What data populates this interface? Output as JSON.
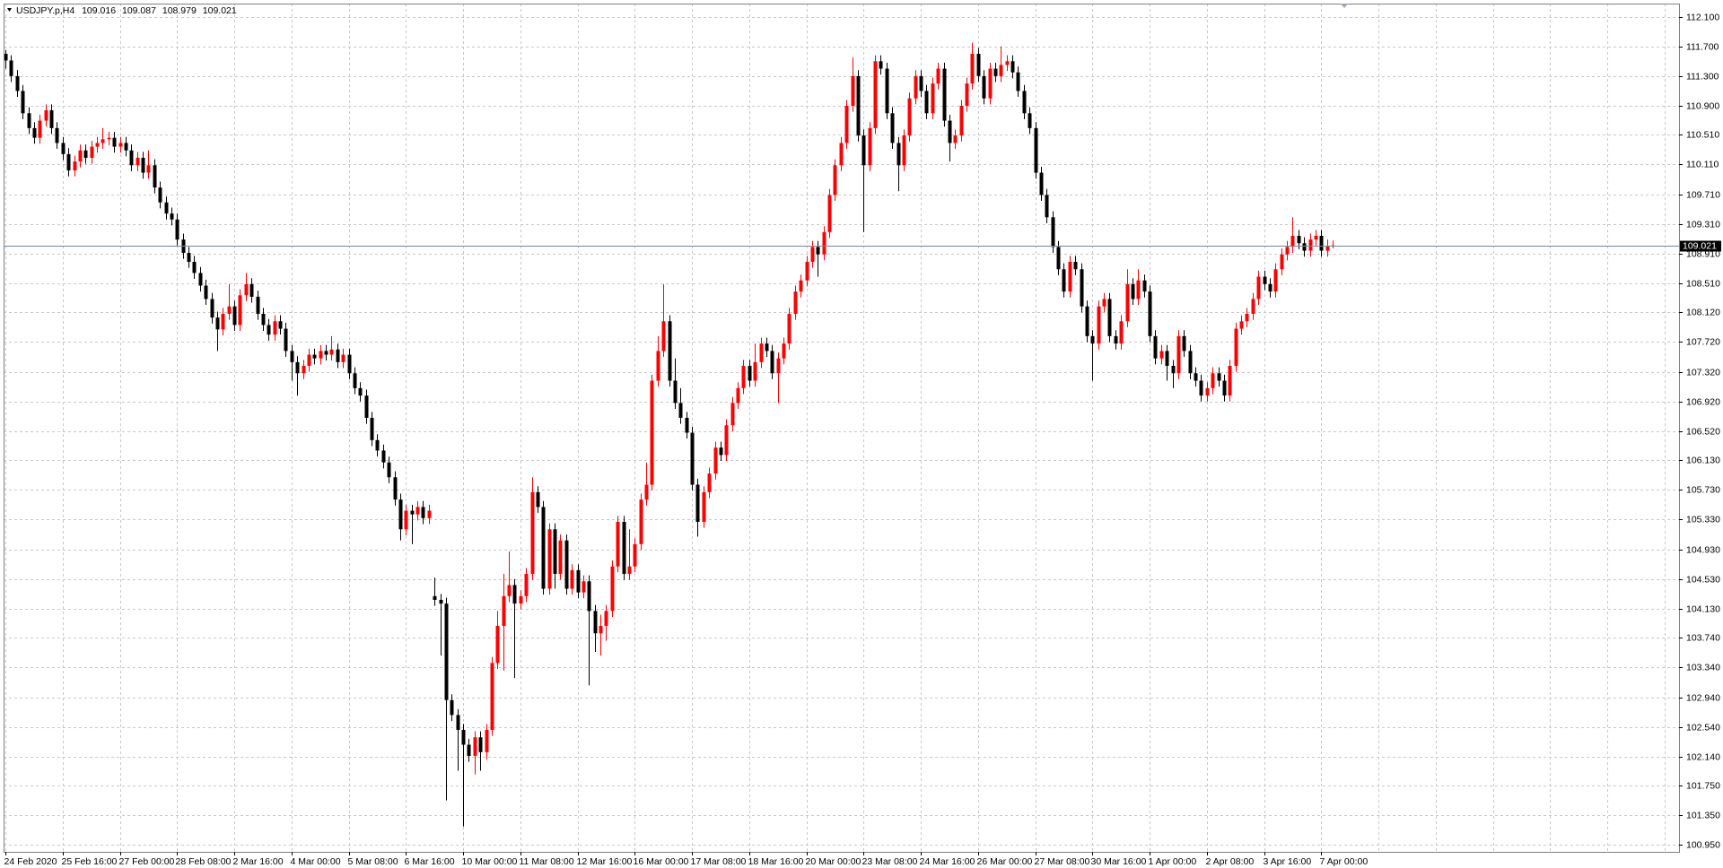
{
  "chart_data": {
    "type": "candlestick",
    "title": "USDJPY.p,H4",
    "up_color": "#ff0000",
    "down_color": "#000000",
    "bid_line_color": "#778899",
    "grid": true,
    "ylim": [
      100.858,
      112.276
    ],
    "yticks": [
      {
        "value": 112.1,
        "label": "112.100"
      },
      {
        "value": 111.7,
        "label": "111.700"
      },
      {
        "value": 111.3,
        "label": "111.300"
      },
      {
        "value": 110.9,
        "label": "110.900"
      },
      {
        "value": 110.51,
        "label": "110.510"
      },
      {
        "value": 110.11,
        "label": "110.110"
      },
      {
        "value": 109.71,
        "label": "109.710"
      },
      {
        "value": 109.31,
        "label": "109.310"
      },
      {
        "value": 108.91,
        "label": "108.910"
      },
      {
        "value": 108.51,
        "label": "108.510"
      },
      {
        "value": 108.12,
        "label": "108.120"
      },
      {
        "value": 107.72,
        "label": "107.720"
      },
      {
        "value": 107.32,
        "label": "107.320"
      },
      {
        "value": 106.92,
        "label": "106.920"
      },
      {
        "value": 106.52,
        "label": "106.520"
      },
      {
        "value": 106.13,
        "label": "106.130"
      },
      {
        "value": 105.73,
        "label": "105.730"
      },
      {
        "value": 105.33,
        "label": "105.330"
      },
      {
        "value": 104.93,
        "label": "104.930"
      },
      {
        "value": 104.53,
        "label": "104.530"
      },
      {
        "value": 104.13,
        "label": "104.130"
      },
      {
        "value": 103.74,
        "label": "103.740"
      },
      {
        "value": 103.34,
        "label": "103.340"
      },
      {
        "value": 102.94,
        "label": "102.940"
      },
      {
        "value": 102.54,
        "label": "102.540"
      },
      {
        "value": 102.14,
        "label": "102.140"
      },
      {
        "value": 101.75,
        "label": "101.750"
      },
      {
        "value": 101.35,
        "label": "101.350"
      },
      {
        "value": 100.95,
        "label": "100.950"
      }
    ],
    "categories": [
      "24 Feb 2020",
      null,
      null,
      null,
      null,
      null,
      null,
      null,
      null,
      null,
      "25 Feb 16:00",
      null,
      null,
      null,
      null,
      null,
      null,
      null,
      null,
      null,
      "27 Feb 00:00",
      null,
      null,
      null,
      null,
      null,
      null,
      null,
      null,
      null,
      "28 Feb 08:00",
      null,
      null,
      null,
      null,
      null,
      null,
      null,
      null,
      null,
      "2 Mar 16:00",
      null,
      null,
      null,
      null,
      null,
      null,
      null,
      null,
      null,
      "4 Mar 00:00",
      null,
      null,
      null,
      null,
      null,
      null,
      null,
      null,
      null,
      "5 Mar 08:00",
      null,
      null,
      null,
      null,
      null,
      null,
      null,
      null,
      null,
      "6 Mar 16:00",
      null,
      null,
      null,
      null,
      null,
      null,
      null,
      null,
      null,
      "10 Mar 00:00",
      null,
      null,
      null,
      null,
      null,
      null,
      null,
      null,
      null,
      "11 Mar 08:00",
      null,
      null,
      null,
      null,
      null,
      null,
      null,
      null,
      null,
      "12 Mar 16:00",
      null,
      null,
      null,
      null,
      null,
      null,
      null,
      null,
      null,
      "16 Mar 00:00",
      null,
      null,
      null,
      null,
      null,
      null,
      null,
      null,
      null,
      "17 Mar 08:00",
      null,
      null,
      null,
      null,
      null,
      null,
      null,
      null,
      null,
      "18 Mar 16:00",
      null,
      null,
      null,
      null,
      null,
      null,
      null,
      null,
      null,
      "20 Mar 00:00",
      null,
      null,
      null,
      null,
      null,
      null,
      null,
      null,
      null,
      "23 Mar 08:00",
      null,
      null,
      null,
      null,
      null,
      null,
      null,
      null,
      null,
      "24 Mar 16:00",
      null,
      null,
      null,
      null,
      null,
      null,
      null,
      null,
      null,
      "26 Mar 00:00",
      null,
      null,
      null,
      null,
      null,
      null,
      null,
      null,
      null,
      "27 Mar 08:00",
      null,
      null,
      null,
      null,
      null,
      null,
      null,
      null,
      null,
      "30 Mar 16:00",
      null,
      null,
      null,
      null,
      null,
      null,
      null,
      null,
      null,
      "1 Apr 00:00",
      null,
      null,
      null,
      null,
      null,
      null,
      null,
      null,
      null,
      "2 Apr 08:00",
      null,
      null,
      null,
      null,
      null,
      null,
      null,
      null,
      null,
      "3 Apr 16:00",
      null,
      null,
      null,
      null,
      null,
      null,
      null,
      null,
      null,
      "7 Apr 00:00",
      null,
      null
    ],
    "open": [
      111.6,
      111.51,
      111.3,
      111.1,
      110.8,
      110.6,
      110.47,
      110.7,
      110.84,
      110.6,
      110.4,
      110.25,
      110.03,
      110.15,
      110.3,
      110.2,
      110.35,
      110.4,
      110.45,
      110.47,
      110.35,
      110.4,
      110.3,
      110.1,
      110.2,
      110.0,
      110.1,
      109.8,
      109.6,
      109.45,
      109.37,
      109.1,
      108.92,
      108.8,
      108.65,
      108.48,
      108.3,
      108.05,
      107.89,
      108.1,
      108.2,
      107.95,
      108.35,
      108.5,
      108.33,
      108.1,
      107.95,
      107.82,
      108.0,
      107.9,
      107.6,
      107.45,
      107.3,
      107.4,
      107.55,
      107.5,
      107.6,
      107.55,
      107.62,
      107.45,
      107.55,
      107.3,
      107.1,
      107.0,
      106.7,
      106.4,
      106.26,
      106.1,
      105.9,
      105.6,
      105.2,
      105.45,
      105.4,
      105.5,
      105.35,
      104.3,
      104.25,
      104.2,
      102.9,
      102.7,
      102.5,
      102.3,
      102.15,
      102.4,
      102.2,
      102.5,
      103.4,
      103.9,
      104.3,
      104.45,
      104.2,
      104.3,
      104.6,
      105.7,
      105.5,
      104.4,
      105.2,
      104.6,
      105.05,
      104.4,
      104.65,
      104.35,
      104.5,
      104.1,
      103.8,
      103.9,
      104.1,
      104.7,
      105.3,
      104.6,
      104.7,
      105.0,
      105.6,
      105.8,
      107.2,
      107.6,
      108.0,
      107.2,
      106.9,
      106.7,
      106.5,
      105.8,
      105.3,
      105.7,
      105.95,
      106.3,
      106.2,
      106.6,
      106.9,
      107.1,
      107.4,
      107.2,
      107.45,
      107.7,
      107.6,
      107.3,
      107.5,
      107.7,
      108.1,
      108.4,
      108.55,
      108.8,
      109.0,
      108.9,
      109.2,
      109.7,
      110.1,
      110.4,
      110.9,
      111.3,
      110.5,
      110.1,
      110.6,
      111.5,
      111.4,
      110.8,
      110.4,
      110.1,
      110.5,
      111.0,
      111.3,
      111.1,
      110.8,
      111.2,
      111.4,
      110.7,
      110.4,
      110.5,
      110.9,
      111.2,
      111.6,
      111.3,
      111.0,
      111.4,
      111.3,
      111.45,
      111.5,
      111.35,
      111.1,
      110.8,
      110.6,
      110.0,
      109.7,
      109.4,
      109.0,
      108.7,
      108.4,
      108.8,
      108.7,
      108.2,
      107.8,
      107.7,
      108.2,
      108.3,
      107.8,
      107.7,
      108.0,
      108.5,
      108.3,
      108.55,
      108.4,
      107.8,
      107.5,
      107.6,
      107.4,
      107.3,
      107.8,
      107.6,
      107.3,
      107.2,
      107.0,
      107.1,
      107.3,
      107.2,
      107.0,
      107.4,
      107.9,
      108.0,
      108.1,
      108.3,
      108.6,
      108.5,
      108.4,
      108.7,
      108.9,
      109.0,
      109.15,
      109.05,
      108.95,
      109.1,
      109.15,
      108.95,
      109.016
    ],
    "high": [
      111.65,
      111.58,
      111.38,
      111.18,
      110.88,
      110.68,
      110.78,
      110.92,
      110.92,
      110.68,
      110.48,
      110.33,
      110.23,
      110.38,
      110.38,
      110.43,
      110.48,
      110.6,
      110.55,
      110.55,
      110.48,
      110.48,
      110.38,
      110.28,
      110.28,
      110.3,
      110.18,
      109.88,
      109.68,
      109.53,
      109.45,
      109.18,
      109.0,
      108.88,
      108.73,
      108.56,
      108.38,
      108.13,
      108.18,
      108.5,
      108.28,
      108.43,
      108.65,
      108.58,
      108.41,
      108.18,
      108.03,
      108.08,
      108.08,
      107.98,
      107.68,
      107.53,
      107.48,
      107.63,
      107.63,
      107.68,
      107.68,
      107.8,
      107.7,
      107.63,
      107.63,
      107.38,
      107.18,
      107.08,
      106.78,
      106.48,
      106.34,
      106.18,
      105.98,
      105.68,
      105.53,
      105.53,
      105.58,
      105.58,
      105.53,
      104.55,
      104.33,
      104.28,
      102.98,
      102.78,
      102.58,
      102.38,
      102.48,
      102.48,
      102.58,
      103.48,
      104.1,
      104.6,
      104.9,
      104.53,
      104.38,
      104.68,
      105.9,
      105.78,
      105.58,
      105.28,
      105.28,
      105.13,
      105.13,
      104.73,
      104.73,
      104.58,
      104.58,
      104.18,
      104.05,
      104.18,
      104.78,
      105.38,
      105.38,
      105.2,
      105.08,
      105.68,
      106.1,
      107.28,
      107.8,
      108.5,
      108.08,
      107.5,
      107.1,
      106.78,
      106.58,
      105.88,
      105.78,
      106.03,
      106.38,
      106.38,
      106.68,
      106.98,
      107.18,
      107.48,
      107.48,
      107.7,
      107.78,
      107.78,
      107.68,
      107.58,
      107.78,
      108.18,
      108.48,
      108.63,
      108.88,
      109.08,
      109.08,
      109.28,
      109.78,
      110.18,
      110.48,
      110.98,
      111.55,
      111.38,
      110.58,
      110.68,
      111.58,
      111.58,
      111.48,
      110.88,
      110.48,
      110.58,
      111.08,
      111.38,
      111.38,
      111.18,
      111.28,
      111.48,
      111.48,
      110.78,
      110.58,
      110.98,
      111.28,
      111.75,
      111.68,
      111.38,
      111.48,
      111.48,
      111.7,
      111.58,
      111.58,
      111.43,
      111.18,
      110.88,
      110.68,
      110.08,
      109.78,
      109.48,
      109.08,
      108.78,
      108.88,
      108.88,
      108.78,
      108.28,
      107.88,
      108.28,
      108.38,
      108.38,
      107.88,
      108.08,
      108.7,
      108.58,
      108.7,
      108.63,
      108.48,
      107.88,
      107.68,
      107.68,
      107.48,
      107.88,
      107.88,
      107.68,
      107.38,
      107.28,
      107.18,
      107.38,
      107.38,
      107.28,
      107.48,
      107.98,
      108.08,
      108.18,
      108.38,
      108.68,
      108.68,
      108.58,
      108.78,
      108.98,
      109.08,
      109.4,
      109.23,
      109.13,
      109.18,
      109.23,
      109.23,
      109.1,
      109.087
    ],
    "low": [
      111.4,
      111.22,
      111.02,
      110.72,
      110.52,
      110.39,
      110.39,
      110.62,
      110.52,
      110.32,
      110.17,
      109.95,
      109.95,
      110.07,
      110.12,
      110.12,
      110.27,
      110.32,
      110.37,
      110.27,
      110.27,
      110.22,
      110.02,
      110.02,
      109.92,
      109.92,
      109.72,
      109.52,
      109.37,
      109.29,
      109.02,
      108.84,
      108.72,
      108.57,
      108.4,
      108.22,
      107.97,
      107.6,
      107.81,
      108.02,
      107.87,
      107.87,
      108.27,
      108.25,
      108.02,
      107.87,
      107.74,
      107.74,
      107.82,
      107.52,
      107.2,
      107.0,
      107.22,
      107.32,
      107.42,
      107.42,
      107.47,
      107.47,
      107.37,
      107.37,
      107.22,
      107.02,
      106.92,
      106.62,
      106.32,
      106.18,
      106.02,
      105.82,
      105.52,
      105.05,
      105.12,
      105.0,
      105.32,
      105.27,
      105.27,
      104.17,
      103.5,
      101.55,
      102.62,
      101.95,
      101.2,
      102.07,
      101.9,
      101.95,
      102.1,
      102.42,
      103.32,
      103.3,
      104.22,
      103.2,
      104.12,
      104.22,
      104.52,
      105.42,
      104.32,
      104.32,
      104.4,
      104.52,
      104.32,
      104.32,
      104.27,
      104.27,
      103.1,
      103.55,
      103.5,
      103.7,
      104.02,
      104.62,
      104.52,
      104.52,
      104.62,
      104.92,
      105.52,
      105.72,
      107.12,
      107.52,
      107.12,
      106.82,
      106.62,
      106.42,
      105.72,
      105.1,
      105.22,
      105.62,
      105.87,
      106.12,
      106.12,
      106.52,
      106.82,
      107.02,
      107.12,
      107.12,
      107.37,
      107.52,
      107.22,
      106.9,
      107.42,
      107.62,
      108.02,
      108.32,
      108.47,
      108.72,
      108.6,
      108.82,
      109.12,
      109.62,
      110.02,
      110.32,
      110.82,
      110.42,
      109.2,
      110.02,
      110.52,
      111.32,
      110.72,
      110.32,
      109.75,
      110.02,
      110.42,
      110.92,
      111.02,
      110.72,
      110.72,
      111.12,
      110.62,
      110.15,
      110.32,
      110.42,
      110.82,
      111.12,
      111.22,
      110.92,
      110.92,
      111.22,
      111.22,
      111.37,
      111.27,
      111.02,
      110.72,
      110.52,
      109.92,
      109.62,
      109.32,
      108.92,
      108.62,
      108.32,
      108.32,
      108.62,
      108.12,
      107.72,
      107.2,
      107.62,
      108.12,
      107.72,
      107.62,
      107.62,
      107.92,
      108.22,
      108.22,
      108.32,
      107.72,
      107.42,
      107.42,
      107.2,
      107.1,
      107.22,
      107.52,
      107.22,
      107.12,
      106.92,
      106.92,
      107.02,
      107.12,
      106.92,
      106.92,
      107.32,
      107.82,
      107.92,
      108.02,
      108.22,
      108.42,
      108.32,
      108.32,
      108.62,
      108.82,
      108.92,
      108.97,
      108.87,
      108.87,
      109.02,
      108.87,
      108.87,
      108.979
    ],
    "close": [
      111.51,
      111.3,
      111.1,
      110.8,
      110.6,
      110.47,
      110.7,
      110.84,
      110.6,
      110.4,
      110.25,
      110.03,
      110.15,
      110.3,
      110.2,
      110.35,
      110.4,
      110.45,
      110.47,
      110.35,
      110.4,
      110.3,
      110.1,
      110.2,
      110.0,
      110.1,
      109.8,
      109.6,
      109.45,
      109.37,
      109.1,
      108.92,
      108.8,
      108.65,
      108.48,
      108.3,
      108.05,
      107.89,
      108.1,
      108.2,
      107.95,
      108.35,
      108.5,
      108.33,
      108.1,
      107.95,
      107.82,
      108.0,
      107.9,
      107.6,
      107.45,
      107.3,
      107.4,
      107.55,
      107.5,
      107.6,
      107.55,
      107.62,
      107.45,
      107.55,
      107.3,
      107.1,
      107.0,
      106.7,
      106.4,
      106.26,
      106.1,
      105.9,
      105.6,
      105.2,
      105.45,
      105.4,
      105.5,
      105.35,
      105.45,
      104.25,
      104.2,
      102.9,
      102.7,
      102.5,
      102.3,
      102.15,
      102.4,
      102.2,
      102.5,
      103.4,
      103.9,
      104.3,
      104.45,
      104.2,
      104.3,
      104.6,
      105.7,
      105.5,
      104.4,
      105.2,
      104.6,
      105.05,
      104.4,
      104.65,
      104.35,
      104.5,
      104.1,
      103.8,
      103.9,
      104.1,
      104.7,
      105.3,
      104.6,
      104.7,
      105.0,
      105.6,
      105.8,
      107.2,
      107.6,
      108.0,
      107.2,
      106.9,
      106.7,
      106.5,
      105.8,
      105.3,
      105.7,
      105.95,
      106.3,
      106.2,
      106.6,
      106.9,
      107.1,
      107.4,
      107.2,
      107.45,
      107.7,
      107.6,
      107.3,
      107.5,
      107.7,
      108.1,
      108.4,
      108.55,
      108.8,
      109.0,
      108.9,
      109.2,
      109.7,
      110.1,
      110.4,
      110.9,
      111.3,
      110.5,
      110.1,
      110.6,
      111.5,
      111.4,
      110.8,
      110.4,
      110.1,
      110.5,
      111.0,
      111.3,
      111.1,
      110.8,
      111.2,
      111.4,
      110.7,
      110.4,
      110.5,
      110.9,
      111.2,
      111.6,
      111.3,
      111.0,
      111.4,
      111.3,
      111.45,
      111.5,
      111.35,
      111.1,
      110.8,
      110.6,
      110.0,
      109.7,
      109.4,
      109.0,
      108.7,
      108.4,
      108.8,
      108.7,
      108.2,
      107.8,
      107.7,
      108.2,
      108.3,
      107.8,
      107.7,
      108.0,
      108.5,
      108.3,
      108.55,
      108.4,
      107.8,
      107.5,
      107.6,
      107.4,
      107.3,
      107.8,
      107.6,
      107.3,
      107.2,
      107.0,
      107.1,
      107.3,
      107.2,
      107.0,
      107.4,
      107.9,
      108.0,
      108.1,
      108.3,
      108.6,
      108.5,
      108.4,
      108.7,
      108.9,
      109.0,
      109.15,
      109.05,
      108.95,
      109.1,
      109.15,
      108.95,
      109.016,
      109.021
    ]
  }
}
